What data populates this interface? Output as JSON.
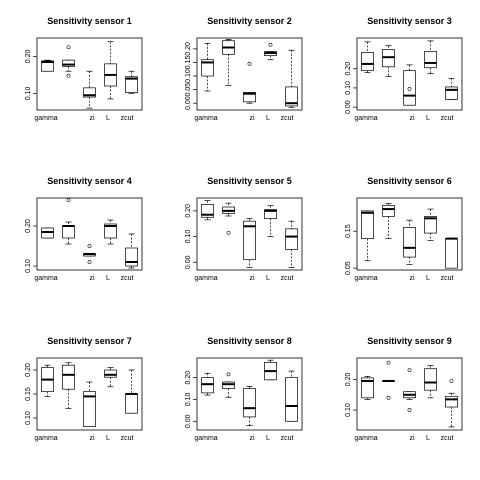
{
  "chart_data": [
    {
      "type": "boxplot",
      "title": "Sensitivity sensor  1",
      "categories": [
        "gamma",
        "",
        "zi",
        "L",
        "zcut"
      ],
      "ylim": [
        0.055,
        0.25
      ],
      "yticks": [
        0.1,
        0.2
      ],
      "tick_labels": [
        "0.10",
        "0.20"
      ],
      "boxes": [
        {
          "whisker_low": 0.16,
          "q1": 0.16,
          "median": 0.185,
          "q3": 0.188,
          "whisker_high": 0.19,
          "outliers": []
        },
        {
          "whisker_low": 0.16,
          "q1": 0.173,
          "median": 0.178,
          "q3": 0.19,
          "whisker_high": 0.19,
          "outliers": [
            0.225,
            0.148
          ]
        },
        {
          "whisker_low": 0.06,
          "q1": 0.09,
          "median": 0.095,
          "q3": 0.115,
          "whisker_high": 0.16,
          "outliers": []
        },
        {
          "whisker_low": 0.085,
          "q1": 0.12,
          "median": 0.15,
          "q3": 0.18,
          "whisker_high": 0.24,
          "outliers": []
        },
        {
          "whisker_low": 0.1,
          "q1": 0.102,
          "median": 0.14,
          "q3": 0.145,
          "whisker_high": 0.16,
          "outliers": []
        }
      ]
    },
    {
      "type": "boxplot",
      "title": "Sensitivity sensor  2",
      "categories": [
        "gamma",
        "",
        "zi",
        "L",
        "zcut"
      ],
      "ylim": [
        -0.025,
        0.24
      ],
      "yticks": [
        0.0,
        0.05,
        0.1,
        0.15,
        0.2
      ],
      "tick_labels": [
        "0.00",
        "0.05",
        "0.10",
        "0.15",
        "0.20"
      ],
      "boxes": [
        {
          "whisker_low": 0.045,
          "q1": 0.1,
          "median": 0.15,
          "q3": 0.16,
          "whisker_high": 0.22,
          "outliers": []
        },
        {
          "whisker_low": 0.065,
          "q1": 0.18,
          "median": 0.205,
          "q3": 0.23,
          "whisker_high": 0.235,
          "outliers": []
        },
        {
          "whisker_low": 0.0,
          "q1": 0.005,
          "median": 0.035,
          "q3": 0.04,
          "whisker_high": 0.04,
          "outliers": [
            0.145
          ]
        },
        {
          "whisker_low": 0.16,
          "q1": 0.175,
          "median": 0.185,
          "q3": 0.19,
          "whisker_high": 0.19,
          "outliers": [
            0.215
          ]
        },
        {
          "whisker_low": -0.015,
          "q1": -0.01,
          "median": 0.0,
          "q3": 0.06,
          "whisker_high": 0.195,
          "outliers": []
        }
      ]
    },
    {
      "type": "boxplot",
      "title": "Sensitivity sensor  3",
      "categories": [
        "gamma",
        "",
        "zi",
        "L",
        "zcut"
      ],
      "ylim": [
        -0.015,
        0.36
      ],
      "yticks": [
        0.0,
        0.1,
        0.2
      ],
      "tick_labels": [
        "0.00",
        "0.10",
        "0.20"
      ],
      "boxes": [
        {
          "whisker_low": 0.18,
          "q1": 0.19,
          "median": 0.225,
          "q3": 0.285,
          "whisker_high": 0.34,
          "outliers": []
        },
        {
          "whisker_low": 0.16,
          "q1": 0.21,
          "median": 0.26,
          "q3": 0.3,
          "whisker_high": 0.32,
          "outliers": []
        },
        {
          "whisker_low": 0.01,
          "q1": 0.01,
          "median": 0.06,
          "q3": 0.19,
          "whisker_high": 0.22,
          "outliers": [
            0.095
          ]
        },
        {
          "whisker_low": 0.175,
          "q1": 0.205,
          "median": 0.23,
          "q3": 0.29,
          "whisker_high": 0.345,
          "outliers": []
        },
        {
          "whisker_low": 0.04,
          "q1": 0.04,
          "median": 0.09,
          "q3": 0.105,
          "whisker_high": 0.15,
          "outliers": []
        }
      ]
    },
    {
      "type": "boxplot",
      "title": "Sensitivity sensor  4",
      "categories": [
        "gamma",
        "",
        "zi",
        "L",
        "zcut"
      ],
      "ylim": [
        0.09,
        0.27
      ],
      "yticks": [
        0.1,
        0.2
      ],
      "tick_labels": [
        "0.10",
        "0.20"
      ],
      "boxes": [
        {
          "whisker_low": 0.17,
          "q1": 0.17,
          "median": 0.185,
          "q3": 0.195,
          "whisker_high": 0.195,
          "outliers": []
        },
        {
          "whisker_low": 0.155,
          "q1": 0.17,
          "median": 0.2,
          "q3": 0.2,
          "whisker_high": 0.21,
          "outliers": [
            0.265
          ]
        },
        {
          "whisker_low": 0.125,
          "q1": 0.125,
          "median": 0.13,
          "q3": 0.13,
          "whisker_high": 0.13,
          "outliers": [
            0.15,
            0.11
          ]
        },
        {
          "whisker_low": 0.155,
          "q1": 0.17,
          "median": 0.2,
          "q3": 0.205,
          "whisker_high": 0.215,
          "outliers": []
        },
        {
          "whisker_low": 0.095,
          "q1": 0.1,
          "median": 0.11,
          "q3": 0.145,
          "whisker_high": 0.18,
          "outliers": []
        }
      ]
    },
    {
      "type": "boxplot",
      "title": "Sensitivity sensor  5",
      "categories": [
        "gamma",
        "",
        "zi",
        "L",
        "zcut"
      ],
      "ylim": [
        -0.03,
        0.25
      ],
      "yticks": [
        0.0,
        0.1,
        0.2
      ],
      "tick_labels": [
        "0.00",
        "0.10",
        "0.20"
      ],
      "boxes": [
        {
          "whisker_low": 0.165,
          "q1": 0.175,
          "median": 0.185,
          "q3": 0.225,
          "whisker_high": 0.24,
          "outliers": []
        },
        {
          "whisker_low": 0.18,
          "q1": 0.19,
          "median": 0.2,
          "q3": 0.215,
          "whisker_high": 0.23,
          "outliers": [
            0.115
          ]
        },
        {
          "whisker_low": -0.02,
          "q1": 0.01,
          "median": 0.14,
          "q3": 0.16,
          "whisker_high": 0.17,
          "outliers": []
        },
        {
          "whisker_low": 0.1,
          "q1": 0.17,
          "median": 0.2,
          "q3": 0.205,
          "whisker_high": 0.22,
          "outliers": []
        },
        {
          "whisker_low": -0.02,
          "q1": 0.05,
          "median": 0.1,
          "q3": 0.13,
          "whisker_high": 0.16,
          "outliers": []
        }
      ]
    },
    {
      "type": "boxplot",
      "title": "Sensitivity sensor  6",
      "categories": [
        "gamma",
        "",
        "zi",
        "L",
        "zcut"
      ],
      "ylim": [
        0.045,
        0.24
      ],
      "yticks": [
        0.05,
        0.15
      ],
      "tick_labels": [
        "0.05",
        "0.15"
      ],
      "boxes": [
        {
          "whisker_low": 0.07,
          "q1": 0.13,
          "median": 0.2,
          "q3": 0.205,
          "whisker_high": 0.205,
          "outliers": []
        },
        {
          "whisker_low": 0.13,
          "q1": 0.19,
          "median": 0.21,
          "q3": 0.22,
          "whisker_high": 0.225,
          "outliers": []
        },
        {
          "whisker_low": 0.06,
          "q1": 0.08,
          "median": 0.105,
          "q3": 0.16,
          "whisker_high": 0.18,
          "outliers": []
        },
        {
          "whisker_low": 0.125,
          "q1": 0.145,
          "median": 0.185,
          "q3": 0.19,
          "whisker_high": 0.21,
          "outliers": []
        },
        {
          "whisker_low": 0.05,
          "q1": 0.05,
          "median": 0.13,
          "q3": 0.13,
          "whisker_high": 0.13,
          "outliers": []
        }
      ]
    },
    {
      "type": "boxplot",
      "title": "Sensitivity sensor  7",
      "categories": [
        "gamma",
        "",
        "zi",
        "L",
        "zcut"
      ],
      "ylim": [
        0.075,
        0.225
      ],
      "yticks": [
        0.1,
        0.15,
        0.2
      ],
      "tick_labels": [
        "0.10",
        "0.15",
        "0.20"
      ],
      "boxes": [
        {
          "whisker_low": 0.145,
          "q1": 0.155,
          "median": 0.18,
          "q3": 0.205,
          "whisker_high": 0.21,
          "outliers": []
        },
        {
          "whisker_low": 0.12,
          "q1": 0.16,
          "median": 0.19,
          "q3": 0.21,
          "whisker_high": 0.215,
          "outliers": []
        },
        {
          "whisker_low": 0.082,
          "q1": 0.082,
          "median": 0.145,
          "q3": 0.155,
          "whisker_high": 0.175,
          "outliers": []
        },
        {
          "whisker_low": 0.165,
          "q1": 0.185,
          "median": 0.19,
          "q3": 0.2,
          "whisker_high": 0.205,
          "outliers": []
        },
        {
          "whisker_low": 0.11,
          "q1": 0.11,
          "median": 0.15,
          "q3": 0.15,
          "whisker_high": 0.2,
          "outliers": []
        }
      ]
    },
    {
      "type": "boxplot",
      "title": "Sensitivity sensor  8",
      "categories": [
        "gamma",
        "",
        "zi",
        "L",
        "zcut"
      ],
      "ylim": [
        -0.04,
        0.29
      ],
      "yticks": [
        0.0,
        0.1,
        0.2
      ],
      "tick_labels": [
        "0.00",
        "0.10",
        "0.20"
      ],
      "boxes": [
        {
          "whisker_low": 0.12,
          "q1": 0.13,
          "median": 0.17,
          "q3": 0.2,
          "whisker_high": 0.22,
          "outliers": []
        },
        {
          "whisker_low": 0.11,
          "q1": 0.15,
          "median": 0.17,
          "q3": 0.18,
          "whisker_high": 0.18,
          "outliers": [
            0.215
          ]
        },
        {
          "whisker_low": -0.02,
          "q1": 0.02,
          "median": 0.06,
          "q3": 0.15,
          "whisker_high": 0.16,
          "outliers": []
        },
        {
          "whisker_low": 0.19,
          "q1": 0.19,
          "median": 0.23,
          "q3": 0.27,
          "whisker_high": 0.28,
          "outliers": []
        },
        {
          "whisker_low": 0.0,
          "q1": 0.0,
          "median": 0.07,
          "q3": 0.2,
          "whisker_high": 0.23,
          "outliers": []
        }
      ]
    },
    {
      "type": "boxplot",
      "title": "Sensitivity sensor  9",
      "categories": [
        "gamma",
        "",
        "zi",
        "L",
        "zcut"
      ],
      "ylim": [
        0.035,
        0.27
      ],
      "yticks": [
        0.1,
        0.2
      ],
      "tick_labels": [
        "0.10",
        "0.20"
      ],
      "boxes": [
        {
          "whisker_low": 0.135,
          "q1": 0.14,
          "median": 0.195,
          "q3": 0.205,
          "whisker_high": 0.21,
          "outliers": []
        },
        {
          "whisker_low": 0.195,
          "q1": 0.195,
          "median": 0.195,
          "q3": 0.195,
          "whisker_high": 0.195,
          "outliers": [
            0.255,
            0.14
          ]
        },
        {
          "whisker_low": 0.135,
          "q1": 0.14,
          "median": 0.15,
          "q3": 0.16,
          "whisker_high": 0.16,
          "outliers": [
            0.23,
            0.1
          ]
        },
        {
          "whisker_low": 0.14,
          "q1": 0.165,
          "median": 0.19,
          "q3": 0.235,
          "whisker_high": 0.245,
          "outliers": []
        },
        {
          "whisker_low": 0.045,
          "q1": 0.11,
          "median": 0.135,
          "q3": 0.145,
          "whisker_high": 0.155,
          "outliers": [
            0.195
          ]
        }
      ]
    }
  ]
}
